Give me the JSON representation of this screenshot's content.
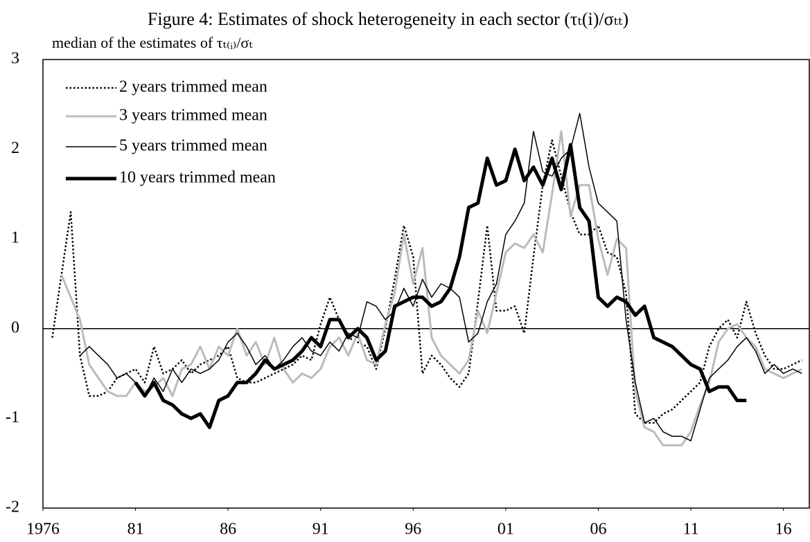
{
  "chart_data": {
    "type": "line",
    "title": "Figure 4: Estimates of shock heterogeneity in each sector (τₜ(i)/σₜₜ)",
    "subtitle": "median of the estimates of τₜ₍ᵢ₎/σₜ",
    "x": [
      1976.5,
      1977,
      1977.5,
      1978,
      1978.5,
      1979,
      1979.5,
      1980,
      1980.5,
      1981,
      1981.5,
      1982,
      1982.5,
      1983,
      1983.5,
      1984,
      1984.5,
      1985,
      1985.5,
      1986,
      1986.5,
      1987,
      1987.5,
      1988,
      1988.5,
      1989,
      1989.5,
      1990,
      1990.5,
      1991,
      1991.5,
      1992,
      1992.5,
      1993,
      1993.5,
      1994,
      1994.5,
      1995,
      1995.5,
      1996,
      1996.5,
      1997,
      1997.5,
      1998,
      1998.5,
      1999,
      1999.5,
      2000,
      2000.5,
      2001,
      2001.5,
      2002,
      2002.5,
      2003,
      2003.5,
      2004,
      2004.5,
      2005,
      2005.5,
      2006,
      2006.5,
      2007,
      2007.5,
      2008,
      2008.5,
      2009,
      2009.5,
      2010,
      2010.5,
      2011,
      2011.5,
      2012,
      2012.5,
      2013,
      2013.5,
      2014,
      2014.5,
      2015,
      2015.5,
      2016,
      2016.5,
      2017
    ],
    "series": [
      {
        "name": "2 years trimmed mean",
        "color": "#000000",
        "values": [
          -0.1,
          0.6,
          1.3,
          -0.3,
          -0.75,
          -0.75,
          -0.7,
          -0.55,
          -0.5,
          -0.45,
          -0.6,
          -0.2,
          -0.5,
          -0.45,
          -0.35,
          -0.5,
          -0.4,
          -0.35,
          -0.3,
          -0.2,
          -0.55,
          -0.6,
          -0.6,
          -0.55,
          -0.5,
          -0.45,
          -0.4,
          -0.3,
          -0.35,
          0.05,
          0.35,
          0.1,
          -0.1,
          -0.15,
          -0.2,
          -0.45,
          0.0,
          0.55,
          1.15,
          0.8,
          -0.5,
          -0.3,
          -0.4,
          -0.55,
          -0.65,
          -0.5,
          0.3,
          1.15,
          0.2,
          0.2,
          0.25,
          -0.05,
          0.8,
          1.6,
          2.1,
          1.7,
          1.3,
          1.05,
          1.05,
          1.15,
          0.85,
          0.8,
          0.4,
          -0.95,
          -1.05,
          -1.05,
          -0.95,
          -0.9,
          -0.8,
          -0.7,
          -0.6,
          -0.2,
          0.0,
          0.1,
          -0.1,
          0.3,
          -0.05,
          -0.3,
          -0.45,
          -0.45,
          -0.4,
          -0.35
        ]
      },
      {
        "name": "3 years trimmed mean",
        "color": "#bbbbbb",
        "values": [
          null,
          0.6,
          0.35,
          0.1,
          -0.4,
          -0.55,
          -0.7,
          -0.75,
          -0.75,
          -0.6,
          -0.7,
          -0.65,
          -0.55,
          -0.75,
          -0.45,
          -0.4,
          -0.2,
          -0.45,
          -0.2,
          -0.3,
          0.0,
          -0.3,
          -0.15,
          -0.4,
          -0.1,
          -0.45,
          -0.6,
          -0.5,
          -0.55,
          -0.45,
          -0.2,
          -0.1,
          -0.3,
          -0.05,
          -0.35,
          -0.4,
          0.05,
          0.4,
          1.05,
          0.5,
          0.9,
          -0.1,
          -0.3,
          -0.4,
          -0.5,
          -0.35,
          0.2,
          -0.05,
          0.4,
          0.85,
          0.95,
          0.9,
          1.05,
          0.85,
          1.5,
          2.2,
          1.25,
          1.6,
          1.6,
          1.0,
          0.6,
          1.0,
          0.9,
          -0.7,
          -1.1,
          -1.15,
          -1.3,
          -1.3,
          -1.3,
          -1.15,
          -0.85,
          -0.6,
          -0.15,
          0.0,
          0.05,
          -0.1,
          -0.2,
          -0.45,
          -0.5,
          -0.55,
          -0.5,
          -0.45
        ]
      },
      {
        "name": "5 years trimmed mean",
        "color": "#000000",
        "values": [
          null,
          null,
          null,
          -0.3,
          -0.2,
          -0.3,
          -0.4,
          -0.55,
          -0.5,
          -0.6,
          -0.75,
          -0.55,
          -0.7,
          -0.45,
          -0.6,
          -0.45,
          -0.5,
          -0.45,
          -0.35,
          -0.15,
          -0.05,
          -0.2,
          -0.4,
          -0.3,
          -0.45,
          -0.35,
          -0.2,
          -0.1,
          -0.25,
          -0.3,
          -0.15,
          -0.25,
          -0.05,
          -0.1,
          0.3,
          0.25,
          0.1,
          0.2,
          0.45,
          0.25,
          0.55,
          0.35,
          0.5,
          0.45,
          0.35,
          -0.15,
          -0.05,
          0.3,
          0.5,
          1.05,
          1.2,
          1.4,
          2.2,
          1.75,
          1.7,
          1.9,
          2.0,
          2.4,
          1.8,
          1.4,
          1.3,
          1.2,
          0.1,
          -0.6,
          -1.05,
          -1.0,
          -1.15,
          -1.2,
          -1.2,
          -1.25,
          -0.9,
          -0.55,
          -0.45,
          -0.35,
          -0.2,
          -0.1,
          -0.25,
          -0.5,
          -0.4,
          -0.5,
          -0.45,
          -0.5
        ]
      },
      {
        "name": "10 years trimmed mean",
        "color": "#000000",
        "values": [
          null,
          null,
          null,
          null,
          null,
          null,
          null,
          null,
          null,
          -0.6,
          -0.75,
          -0.6,
          -0.8,
          -0.85,
          -0.95,
          -1.0,
          -0.95,
          -1.1,
          -0.8,
          -0.75,
          -0.6,
          -0.6,
          -0.5,
          -0.35,
          -0.45,
          -0.4,
          -0.35,
          -0.25,
          -0.1,
          -0.2,
          0.1,
          0.1,
          -0.1,
          0.0,
          -0.1,
          -0.35,
          -0.25,
          0.25,
          0.3,
          0.35,
          0.35,
          0.25,
          0.3,
          0.45,
          0.8,
          1.35,
          1.4,
          1.9,
          1.6,
          1.65,
          2.0,
          1.65,
          1.8,
          1.6,
          1.9,
          1.55,
          2.05,
          1.35,
          1.2,
          0.35,
          0.25,
          0.35,
          0.3,
          0.15,
          0.25,
          -0.1,
          -0.15,
          -0.2,
          -0.3,
          -0.4,
          -0.45,
          -0.7,
          -0.65,
          -0.65,
          -0.8,
          -0.8,
          null,
          null,
          null,
          null,
          null,
          null
        ]
      }
    ],
    "xlim": [
      1976,
      2017.4
    ],
    "xticks": [
      1976,
      {
        "value": 1981,
        "label": "81"
      },
      {
        "value": 1986,
        "label": "86"
      },
      {
        "value": 1991,
        "label": "91"
      },
      {
        "value": 1996,
        "label": "96"
      },
      {
        "value": 2001,
        "label": "01"
      },
      {
        "value": 2006,
        "label": "06"
      },
      {
        "value": 2011,
        "label": "11"
      },
      {
        "value": 2016,
        "label": "16"
      }
    ],
    "ylim": [
      -2,
      3
    ],
    "yticks": [
      -2,
      -1,
      0,
      1,
      2,
      3
    ],
    "legend": "upper left"
  }
}
